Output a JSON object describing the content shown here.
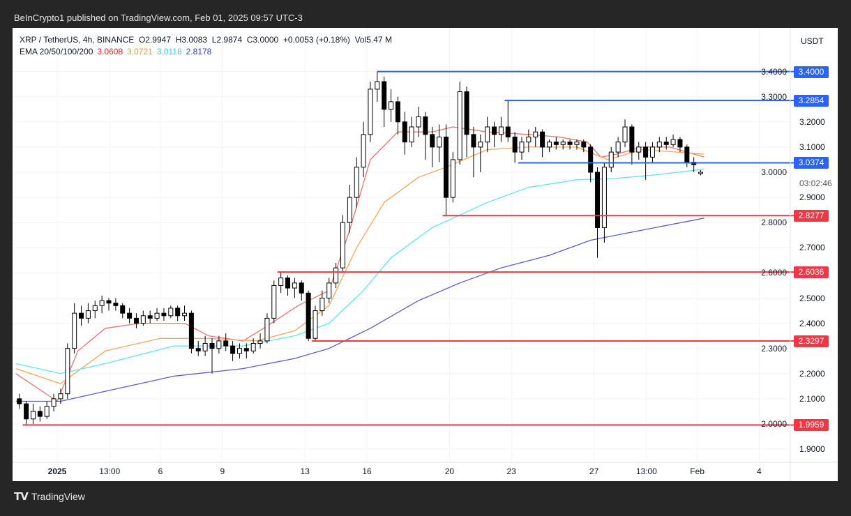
{
  "header": {
    "published": "BeInCrypto1 published on TradingView.com, Feb 01, 2025 09:57 UTC-3"
  },
  "legend": {
    "symbol": "XRP / TetherUS, 4h, BINANCE",
    "open": "O2.9947",
    "high": "H3.0083",
    "low": "L2.9874",
    "close": "C3.0000",
    "change": "+0.0053 (+0.18%)",
    "volume": "Vol5.47 M",
    "ema_label": "EMA 20/50/100/200",
    "ema_values": [
      {
        "value": "3.0608",
        "color": "#e5202e"
      },
      {
        "value": "3.0721",
        "color": "#f39b28"
      },
      {
        "value": "3.0118",
        "color": "#2fd3de"
      },
      {
        "value": "2.8178",
        "color": "#2a3bd6"
      }
    ]
  },
  "price_axis": {
    "currency": "USDT",
    "countdown": "03:02:46",
    "ticks": [
      "1.9000",
      "2.0000",
      "2.1000",
      "2.2000",
      "2.3000",
      "2.4000",
      "2.5000",
      "2.6000",
      "2.7000",
      "2.8000",
      "2.9000",
      "3.0000",
      "3.1000",
      "3.2000",
      "3.3000",
      "3.4000"
    ]
  },
  "footer": {
    "brand": "TradingView",
    "logo": "TV"
  },
  "chart_data": {
    "type": "candlestick",
    "title": "XRP / TetherUS, 4h, BINANCE",
    "ylabel": "USDT",
    "ylim": [
      1.85,
      3.57
    ],
    "xlim": [
      "2024-12-29T22:00",
      "2025-02-05T08:00"
    ],
    "grid": true,
    "x_ticks": [
      {
        "label": "2025",
        "date": "2025-01-01T00:00",
        "bold": true
      },
      {
        "label": "13:00",
        "date": "2025-01-03T13:00"
      },
      {
        "label": "6",
        "date": "2025-01-06T00:00"
      },
      {
        "label": "9",
        "date": "2025-01-09T00:00"
      },
      {
        "label": "13",
        "date": "2025-01-13T00:00"
      },
      {
        "label": "16",
        "date": "2025-01-16T00:00"
      },
      {
        "label": "20",
        "date": "2025-01-20T00:00"
      },
      {
        "label": "23",
        "date": "2025-01-23T00:00"
      },
      {
        "label": "27",
        "date": "2025-01-27T00:00"
      },
      {
        "label": "13:00",
        "date": "2025-01-29T13:00"
      },
      {
        "label": "Feb",
        "date": "2025-02-01T00:00"
      },
      {
        "label": "4",
        "date": "2025-02-04T00:00"
      }
    ],
    "colors": {
      "up_body": "#ffffff",
      "down_body": "#000000",
      "wick": "#000000",
      "support": "#f23645",
      "resistance": "#2962ff"
    },
    "candles": {
      "start": "2024-12-30T00:00",
      "interval_hours": 8,
      "ohlc": [
        [
          2.1,
          2.12,
          2.06,
          2.08
        ],
        [
          2.08,
          2.09,
          1.996,
          2.02
        ],
        [
          2.02,
          2.08,
          2.0,
          2.05
        ],
        [
          2.05,
          2.07,
          2.01,
          2.03
        ],
        [
          2.03,
          2.09,
          2.02,
          2.07
        ],
        [
          2.07,
          2.12,
          2.05,
          2.1
        ],
        [
          2.1,
          2.14,
          2.08,
          2.12
        ],
        [
          2.12,
          2.32,
          2.1,
          2.3
        ],
        [
          2.3,
          2.48,
          2.28,
          2.44
        ],
        [
          2.44,
          2.47,
          2.39,
          2.42
        ],
        [
          2.42,
          2.48,
          2.4,
          2.45
        ],
        [
          2.45,
          2.49,
          2.42,
          2.47
        ],
        [
          2.47,
          2.51,
          2.44,
          2.49
        ],
        [
          2.49,
          2.5,
          2.45,
          2.48
        ],
        [
          2.48,
          2.5,
          2.45,
          2.47
        ],
        [
          2.47,
          2.48,
          2.42,
          2.44
        ],
        [
          2.44,
          2.46,
          2.4,
          2.42
        ],
        [
          2.42,
          2.44,
          2.38,
          2.4
        ],
        [
          2.4,
          2.45,
          2.39,
          2.43
        ],
        [
          2.43,
          2.45,
          2.4,
          2.42
        ],
        [
          2.42,
          2.46,
          2.41,
          2.44
        ],
        [
          2.44,
          2.46,
          2.41,
          2.43
        ],
        [
          2.43,
          2.47,
          2.42,
          2.46
        ],
        [
          2.46,
          2.47,
          2.41,
          2.43
        ],
        [
          2.43,
          2.47,
          2.41,
          2.44
        ],
        [
          2.44,
          2.45,
          2.28,
          2.3
        ],
        [
          2.3,
          2.33,
          2.27,
          2.29
        ],
        [
          2.29,
          2.35,
          2.27,
          2.32
        ],
        [
          2.32,
          2.34,
          2.2,
          2.3
        ],
        [
          2.3,
          2.35,
          2.28,
          2.33
        ],
        [
          2.33,
          2.36,
          2.29,
          2.31
        ],
        [
          2.31,
          2.33,
          2.25,
          2.28
        ],
        [
          2.28,
          2.32,
          2.26,
          2.3
        ],
        [
          2.3,
          2.32,
          2.26,
          2.29
        ],
        [
          2.29,
          2.34,
          2.28,
          2.32
        ],
        [
          2.32,
          2.36,
          2.3,
          2.33
        ],
        [
          2.33,
          2.44,
          2.32,
          2.42
        ],
        [
          2.42,
          2.57,
          2.4,
          2.55
        ],
        [
          2.55,
          2.6036,
          2.52,
          2.58
        ],
        [
          2.58,
          2.59,
          2.51,
          2.54
        ],
        [
          2.54,
          2.58,
          2.5,
          2.56
        ],
        [
          2.56,
          2.57,
          2.49,
          2.52
        ],
        [
          2.52,
          2.53,
          2.3297,
          2.34
        ],
        [
          2.34,
          2.47,
          2.33,
          2.45
        ],
        [
          2.45,
          2.53,
          2.43,
          2.5
        ],
        [
          2.5,
          2.58,
          2.48,
          2.56
        ],
        [
          2.56,
          2.64,
          2.54,
          2.62
        ],
        [
          2.62,
          2.83,
          2.6,
          2.8
        ],
        [
          2.8,
          2.95,
          2.76,
          2.9
        ],
        [
          2.9,
          3.06,
          2.86,
          3.02
        ],
        [
          3.02,
          3.2,
          2.98,
          3.15
        ],
        [
          3.15,
          3.36,
          3.12,
          3.33
        ],
        [
          3.33,
          3.4,
          3.28,
          3.36
        ],
        [
          3.36,
          3.38,
          3.18,
          3.25
        ],
        [
          3.25,
          3.33,
          3.2,
          3.28
        ],
        [
          3.28,
          3.3,
          3.15,
          3.2
        ],
        [
          3.2,
          3.24,
          3.07,
          3.12
        ],
        [
          3.12,
          3.22,
          3.1,
          3.18
        ],
        [
          3.18,
          3.26,
          3.14,
          3.22
        ],
        [
          3.22,
          3.24,
          3.05,
          3.15
        ],
        [
          3.15,
          3.18,
          3.02,
          3.1
        ],
        [
          3.1,
          3.19,
          3.04,
          3.14
        ],
        [
          3.14,
          3.19,
          2.8277,
          2.9
        ],
        [
          2.9,
          3.08,
          2.88,
          3.05
        ],
        [
          3.05,
          3.36,
          3.03,
          3.32
        ],
        [
          3.32,
          3.34,
          3.06,
          3.15
        ],
        [
          3.15,
          3.18,
          2.98,
          3.1
        ],
        [
          3.1,
          3.15,
          3.0,
          3.12
        ],
        [
          3.12,
          3.22,
          3.08,
          3.18
        ],
        [
          3.18,
          3.2,
          3.1,
          3.15
        ],
        [
          3.15,
          3.22,
          3.12,
          3.18
        ],
        [
          3.18,
          3.2854,
          3.12,
          3.14
        ],
        [
          3.14,
          3.16,
          3.0374,
          3.08
        ],
        [
          3.08,
          3.14,
          3.05,
          3.12
        ],
        [
          3.12,
          3.17,
          3.08,
          3.14
        ],
        [
          3.14,
          3.18,
          3.1,
          3.16
        ],
        [
          3.16,
          3.17,
          3.06,
          3.1
        ],
        [
          3.1,
          3.13,
          3.08,
          3.12
        ],
        [
          3.12,
          3.14,
          3.09,
          3.11
        ],
        [
          3.11,
          3.13,
          3.09,
          3.12
        ],
        [
          3.12,
          3.13,
          3.09,
          3.11
        ],
        [
          3.11,
          3.13,
          3.09,
          3.12
        ],
        [
          3.12,
          3.13,
          3.08,
          3.1
        ],
        [
          3.1,
          3.11,
          2.96,
          3.0
        ],
        [
          3.0,
          3.02,
          2.66,
          2.78
        ],
        [
          2.78,
          3.04,
          2.72,
          3.02
        ],
        [
          3.02,
          3.1,
          3.0,
          3.08
        ],
        [
          3.08,
          3.14,
          3.06,
          3.12
        ],
        [
          3.12,
          3.21,
          3.1,
          3.18
        ],
        [
          3.18,
          3.19,
          3.03,
          3.08
        ],
        [
          3.08,
          3.12,
          3.05,
          3.1
        ],
        [
          3.1,
          3.12,
          2.97,
          3.06
        ],
        [
          3.06,
          3.12,
          3.04,
          3.1
        ],
        [
          3.1,
          3.14,
          3.08,
          3.12
        ],
        [
          3.12,
          3.14,
          3.09,
          3.11
        ],
        [
          3.11,
          3.15,
          3.1,
          3.13
        ],
        [
          3.13,
          3.14,
          3.08,
          3.1
        ],
        [
          3.1,
          3.11,
          3.02,
          3.04
        ],
        [
          3.04,
          3.06,
          3.0,
          3.03
        ],
        [
          2.9947,
          3.0083,
          2.9874,
          3.0
        ]
      ]
    },
    "ema_series": [
      {
        "name": "EMA 20",
        "color": "#f07070",
        "points": [
          [
            "2024-12-30T00:00",
            2.2
          ],
          [
            "2025-01-01T00:00",
            2.09
          ],
          [
            "2025-01-02T00:00",
            2.29
          ],
          [
            "2025-01-03T08:00",
            2.38
          ],
          [
            "2025-01-05T00:00",
            2.4
          ],
          [
            "2025-01-07T04:00",
            2.4
          ],
          [
            "2025-01-08T08:00",
            2.35
          ],
          [
            "2025-01-10T00:00",
            2.33
          ],
          [
            "2025-01-11T00:00",
            2.38
          ],
          [
            "2025-01-12T16:00",
            2.47
          ],
          [
            "2025-01-14T04:00",
            2.53
          ],
          [
            "2025-01-15T04:00",
            2.77
          ],
          [
            "2025-01-16T04:00",
            3.05
          ],
          [
            "2025-01-17T12:00",
            3.16
          ],
          [
            "2025-01-19T04:00",
            3.16
          ],
          [
            "2025-01-20T04:00",
            3.18
          ],
          [
            "2025-01-21T20:00",
            3.16
          ],
          [
            "2025-01-23T20:00",
            3.15
          ],
          [
            "2025-01-25T08:00",
            3.14
          ],
          [
            "2025-01-26T16:00",
            3.12
          ],
          [
            "2025-01-27T08:00",
            3.06
          ],
          [
            "2025-01-28T00:00",
            3.07
          ],
          [
            "2025-01-29T08:00",
            3.1
          ],
          [
            "2025-01-30T16:00",
            3.1
          ],
          [
            "2025-02-01T08:00",
            3.0608
          ]
        ]
      },
      {
        "name": "EMA 50",
        "color": "#f5a55a",
        "points": [
          [
            "2024-12-30T00:00",
            2.22
          ],
          [
            "2025-01-01T04:00",
            2.16
          ],
          [
            "2025-01-03T08:00",
            2.29
          ],
          [
            "2025-01-06T00:00",
            2.34
          ],
          [
            "2025-01-08T08:00",
            2.34
          ],
          [
            "2025-01-10T16:00",
            2.33
          ],
          [
            "2025-01-12T12:00",
            2.37
          ],
          [
            "2025-01-14T04:00",
            2.47
          ],
          [
            "2025-01-15T12:00",
            2.7
          ],
          [
            "2025-01-16T20:00",
            2.88
          ],
          [
            "2025-01-18T12:00",
            2.98
          ],
          [
            "2025-01-19T20:00",
            3.02
          ],
          [
            "2025-01-21T20:00",
            3.09
          ],
          [
            "2025-01-23T20:00",
            3.1
          ],
          [
            "2025-01-26T04:00",
            3.1
          ],
          [
            "2025-01-27T16:00",
            3.05
          ],
          [
            "2025-01-29T08:00",
            3.09
          ],
          [
            "2025-02-01T08:00",
            3.0721
          ]
        ]
      },
      {
        "name": "EMA 100",
        "color": "#5ee6ec",
        "points": [
          [
            "2024-12-30T00:00",
            2.24
          ],
          [
            "2025-01-01T04:00",
            2.2
          ],
          [
            "2025-01-03T08:00",
            2.24
          ],
          [
            "2025-01-06T16:00",
            2.31
          ],
          [
            "2025-01-10T00:00",
            2.31
          ],
          [
            "2025-01-12T12:00",
            2.35
          ],
          [
            "2025-01-14T04:00",
            2.4
          ],
          [
            "2025-01-15T20:00",
            2.53
          ],
          [
            "2025-01-17T04:00",
            2.66
          ],
          [
            "2025-01-19T04:00",
            2.78
          ],
          [
            "2025-01-21T20:00",
            2.88
          ],
          [
            "2025-01-23T20:00",
            2.94
          ],
          [
            "2025-01-26T04:00",
            2.97
          ],
          [
            "2025-01-28T00:00",
            2.975
          ],
          [
            "2025-01-30T00:00",
            2.99
          ],
          [
            "2025-02-01T08:00",
            3.0118
          ]
        ]
      },
      {
        "name": "EMA 200",
        "color": "#5a5ad8",
        "points": [
          [
            "2024-12-30T00:00",
            2.09
          ],
          [
            "2025-01-01T04:00",
            2.09
          ],
          [
            "2025-01-03T08:00",
            2.13
          ],
          [
            "2025-01-06T16:00",
            2.19
          ],
          [
            "2025-01-10T00:00",
            2.22
          ],
          [
            "2025-01-12T12:00",
            2.26
          ],
          [
            "2025-01-14T04:00",
            2.3
          ],
          [
            "2025-01-16T04:00",
            2.38
          ],
          [
            "2025-01-18T12:00",
            2.49
          ],
          [
            "2025-01-20T12:00",
            2.56
          ],
          [
            "2025-01-22T12:00",
            2.62
          ],
          [
            "2025-01-24T20:00",
            2.67
          ],
          [
            "2025-01-26T20:00",
            2.73
          ],
          [
            "2025-01-29T08:00",
            2.77
          ],
          [
            "2025-02-01T08:00",
            2.8178
          ]
        ]
      }
    ],
    "levels": [
      {
        "label": "3.4000",
        "price": 3.4,
        "from": "2025-01-16T12:00",
        "kind": "resistance"
      },
      {
        "label": "3.2854",
        "price": 3.2854,
        "from": "2025-01-22T16:00",
        "kind": "resistance"
      },
      {
        "label": "3.0374",
        "price": 3.0374,
        "from": "2025-01-23T08:00",
        "kind": "resistance"
      },
      {
        "label": "2.8277",
        "price": 2.8277,
        "from": "2025-01-19T16:00",
        "kind": "support"
      },
      {
        "label": "2.6036",
        "price": 2.6036,
        "from": "2025-01-11T16:00",
        "kind": "support"
      },
      {
        "label": "2.3297",
        "price": 2.3297,
        "from": "2025-01-13T08:00",
        "kind": "support"
      },
      {
        "label": "1.9959",
        "price": 1.9959,
        "from": "2024-12-30T08:00",
        "kind": "support"
      }
    ]
  }
}
